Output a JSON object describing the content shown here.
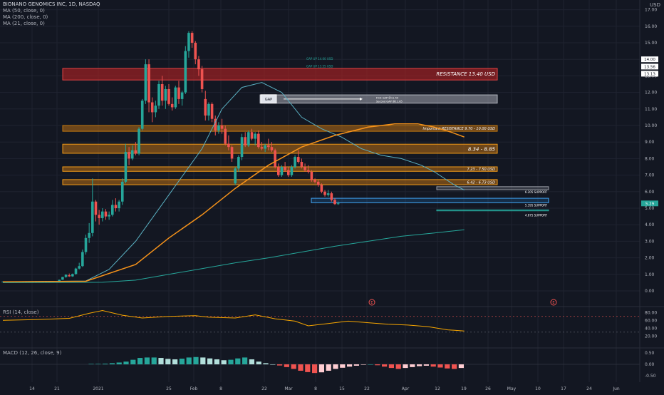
{
  "header": {
    "symbol_line": "BIONANO GENOMICS INC, 1D, NASDAQ",
    "indicators": [
      "MA (50, close, 0)",
      "MA (200, close, 0)",
      "MA (21, close, 0)"
    ],
    "currency": "USD"
  },
  "colors": {
    "background": "#131722",
    "grid": "#1f2330",
    "up": "#26a69a",
    "down": "#ef5350",
    "ma50": "#f7931a",
    "ma200": "#26a69a",
    "ma21": "#5ab0c2",
    "text": "#b2b5be",
    "resistance_red": "#b22222",
    "zone_orange": "#e68a00",
    "gap_grey": "#9598a1",
    "rsi": "#f7a600",
    "macd_hist_up": "#26a69a",
    "macd_hist_up_light": "#b2dfdb",
    "macd_hist_down": "#ef5350",
    "macd_hist_down_light": "#ffcdd2"
  },
  "price_axis": {
    "ticks": [
      "17.00",
      "16.00",
      "15.00",
      "14.00",
      "13.00",
      "12.00",
      "11.00",
      "10.00",
      "9.00",
      "8.00",
      "7.00",
      "6.00",
      "5.00",
      "4.00",
      "3.00",
      "2.00",
      "1.00",
      "0.00"
    ],
    "tags": [
      {
        "label": "14.00",
        "value": 14.0,
        "color": "#ffffff",
        "text_color": "#131722"
      },
      {
        "label": "13.56",
        "value": 13.56,
        "color": "#ffffff",
        "text_color": "#131722"
      },
      {
        "label": "13.13",
        "value": 13.13,
        "color": "#ffffff",
        "text_color": "#131722"
      },
      {
        "label": "5.29",
        "value": 5.29,
        "color": "#26a69a",
        "text_color": "#ffffff"
      }
    ]
  },
  "time_axis": {
    "labels": [
      "14",
      "21",
      "2021",
      "25",
      "Feb",
      "8",
      "22",
      "Mar",
      "8",
      "15",
      "22",
      "Apr",
      "12",
      "19",
      "26",
      "May",
      "10",
      "17",
      "24",
      "Jun"
    ]
  },
  "annotations": {
    "resistance_main": "RESISTANCE 13.40 USD",
    "important_resistance": "Important RESISTANCE 9.70 - 10.00 USD",
    "zone_834": "8.34 - 8.85",
    "zone_723": "7.23 - 7.50 USD",
    "zone_642": "6.42 - 6.73 USD",
    "support_620": "6.205 SUPPORT",
    "support_539": "5.395 SUPPORT",
    "support_487": "4.875 SUPPORT",
    "gap_label": "GAP",
    "gap_first": "First GAP @11.50",
    "gap_second": "Second GAP @11.65",
    "gap_up_1": "GAP UP 14.00 USD",
    "gap_up_2": "GAP UP 13.55 USD",
    "event_markers": [
      "E",
      "E"
    ]
  },
  "rsi": {
    "label": "RSI (14, close)",
    "ticks": [
      "80.00",
      "60.00",
      "40.00",
      "20.00"
    ]
  },
  "macd": {
    "label": "MACD (12, 26, close, 9)",
    "ticks": [
      "0.50",
      "0.00",
      "-0.50"
    ]
  },
  "chart_data": {
    "type": "candlestick",
    "title": "BIONANO GENOMICS INC, 1D, NASDAQ",
    "ylabel": "USD",
    "ylim": [
      -0.2,
      17.2
    ],
    "candles": [
      [
        0.56,
        0.57,
        0.55,
        0.56
      ],
      [
        0.56,
        0.57,
        0.55,
        0.56
      ],
      [
        0.56,
        0.57,
        0.55,
        0.56
      ],
      [
        0.56,
        0.57,
        0.55,
        0.56
      ],
      [
        0.56,
        0.57,
        0.55,
        0.56
      ],
      [
        0.56,
        0.57,
        0.55,
        0.56
      ],
      [
        0.56,
        0.57,
        0.55,
        0.56
      ],
      [
        0.56,
        0.57,
        0.55,
        0.56
      ],
      [
        0.56,
        0.57,
        0.55,
        0.56
      ],
      [
        0.56,
        0.57,
        0.55,
        0.56
      ],
      [
        0.56,
        0.57,
        0.55,
        0.56
      ],
      [
        0.56,
        0.57,
        0.55,
        0.56
      ],
      [
        0.56,
        0.57,
        0.55,
        0.56
      ],
      [
        0.56,
        0.57,
        0.55,
        0.56
      ],
      [
        0.56,
        0.57,
        0.55,
        0.56
      ],
      [
        0.56,
        0.58,
        0.55,
        0.57
      ],
      [
        0.57,
        0.6,
        0.56,
        0.59
      ],
      [
        0.6,
        0.68,
        0.59,
        0.67
      ],
      [
        0.68,
        0.85,
        0.66,
        0.84
      ],
      [
        0.84,
        1.0,
        0.8,
        0.98
      ],
      [
        0.95,
        1.05,
        0.85,
        0.88
      ],
      [
        0.88,
        1.05,
        0.85,
        1.02
      ],
      [
        1.02,
        1.4,
        0.98,
        1.35
      ],
      [
        1.35,
        1.7,
        1.3,
        1.5
      ],
      [
        1.5,
        2.5,
        1.45,
        2.35
      ],
      [
        2.35,
        3.4,
        2.2,
        3.2
      ],
      [
        3.2,
        4.1,
        2.9,
        3.5
      ],
      [
        3.5,
        6.8,
        3.3,
        5.4
      ],
      [
        5.4,
        5.5,
        4.2,
        4.6
      ],
      [
        4.6,
        4.9,
        4.0,
        4.4
      ],
      [
        4.4,
        5.0,
        4.2,
        4.8
      ],
      [
        4.8,
        4.95,
        4.3,
        4.5
      ],
      [
        4.5,
        4.8,
        4.3,
        4.6
      ],
      [
        4.6,
        5.5,
        4.5,
        5.2
      ],
      [
        5.2,
        5.6,
        4.8,
        5.0
      ],
      [
        5.0,
        5.5,
        4.8,
        5.4
      ],
      [
        5.4,
        6.8,
        5.2,
        6.6
      ],
      [
        6.6,
        8.9,
        6.5,
        8.4
      ],
      [
        8.4,
        8.7,
        7.6,
        8.0
      ],
      [
        8.0,
        8.8,
        7.9,
        8.5
      ],
      [
        8.5,
        9.0,
        8.2,
        8.3
      ],
      [
        8.3,
        9.9,
        8.2,
        9.8
      ],
      [
        9.8,
        11.6,
        9.7,
        11.5
      ],
      [
        11.5,
        14.0,
        11.3,
        13.7
      ],
      [
        13.7,
        14.0,
        10.8,
        11.4
      ],
      [
        11.4,
        11.7,
        10.2,
        10.8
      ],
      [
        10.8,
        11.5,
        10.5,
        11.2
      ],
      [
        11.2,
        12.7,
        11.0,
        12.5
      ],
      [
        12.5,
        13.0,
        11.2,
        11.5
      ],
      [
        11.5,
        12.4,
        11.0,
        12.2
      ],
      [
        12.2,
        12.5,
        11.2,
        11.3
      ],
      [
        11.3,
        11.7,
        10.9,
        11.1
      ],
      [
        11.1,
        12.4,
        11.0,
        12.3
      ],
      [
        12.3,
        12.7,
        11.3,
        11.6
      ],
      [
        11.6,
        12.1,
        11.2,
        12.0
      ],
      [
        12.0,
        14.8,
        11.9,
        14.5
      ],
      [
        14.5,
        15.7,
        14.1,
        15.6
      ],
      [
        15.6,
        15.7,
        14.7,
        15.0
      ],
      [
        15.0,
        15.1,
        13.7,
        14.0
      ],
      [
        14.0,
        14.2,
        13.0,
        13.4
      ],
      [
        13.4,
        13.6,
        12.0,
        12.2
      ],
      [
        11.6,
        12.1,
        10.3,
        10.6
      ],
      [
        10.6,
        11.4,
        10.3,
        11.3
      ],
      [
        11.3,
        11.4,
        10.2,
        10.4
      ],
      [
        10.4,
        10.6,
        9.4,
        9.7
      ],
      [
        9.7,
        10.2,
        9.5,
        10.0
      ],
      [
        10.0,
        10.4,
        9.5,
        9.8
      ],
      [
        9.8,
        10.0,
        8.8,
        8.9
      ],
      [
        8.9,
        9.4,
        8.5,
        8.7
      ],
      [
        8.7,
        8.8,
        7.8,
        8.0
      ],
      [
        6.5,
        7.5,
        6.4,
        7.4
      ],
      [
        7.4,
        8.2,
        7.2,
        8.1
      ],
      [
        8.1,
        9.5,
        7.9,
        9.3
      ],
      [
        9.3,
        9.6,
        8.7,
        8.8
      ],
      [
        8.8,
        9.7,
        8.7,
        9.6
      ],
      [
        9.6,
        9.8,
        9.1,
        9.2
      ],
      [
        9.2,
        9.6,
        8.8,
        9.5
      ],
      [
        9.5,
        9.7,
        8.6,
        8.7
      ],
      [
        8.7,
        9.0,
        8.5,
        8.6
      ],
      [
        8.6,
        8.9,
        8.4,
        8.8
      ],
      [
        8.8,
        9.2,
        8.5,
        8.7
      ],
      [
        8.7,
        9.0,
        8.4,
        8.5
      ],
      [
        8.5,
        8.6,
        7.4,
        7.5
      ],
      [
        7.5,
        7.7,
        6.9,
        7.0
      ],
      [
        7.0,
        7.6,
        6.9,
        7.5
      ],
      [
        7.5,
        7.8,
        7.2,
        7.3
      ],
      [
        7.3,
        7.5,
        6.9,
        7.0
      ],
      [
        7.0,
        7.6,
        6.9,
        7.5
      ],
      [
        7.5,
        8.2,
        7.4,
        8.1
      ],
      [
        8.1,
        8.5,
        7.7,
        7.8
      ],
      [
        7.8,
        8.0,
        7.4,
        7.5
      ],
      [
        7.5,
        7.7,
        7.2,
        7.3
      ],
      [
        7.3,
        7.6,
        7.1,
        7.2
      ],
      [
        7.2,
        7.3,
        6.6,
        6.7
      ],
      [
        6.7,
        6.8,
        6.5,
        6.6
      ],
      [
        6.6,
        6.7,
        6.3,
        6.4
      ],
      [
        6.4,
        6.5,
        5.9,
        6.0
      ],
      [
        6.0,
        6.1,
        5.7,
        5.8
      ],
      [
        5.8,
        6.1,
        5.7,
        5.9
      ],
      [
        5.9,
        6.0,
        5.4,
        5.5
      ],
      [
        5.5,
        5.6,
        5.2,
        5.25
      ],
      [
        5.25,
        5.4,
        5.2,
        5.29
      ]
    ],
    "ma50": [
      [
        0,
        0.55
      ],
      [
        25,
        0.58
      ],
      [
        40,
        1.6
      ],
      [
        50,
        3.2
      ],
      [
        60,
        4.6
      ],
      [
        70,
        6.2
      ],
      [
        80,
        7.6
      ],
      [
        90,
        8.7
      ],
      [
        100,
        9.4
      ],
      [
        110,
        9.9
      ],
      [
        118,
        10.1
      ],
      [
        125,
        10.1
      ],
      [
        130,
        9.9
      ],
      [
        135,
        9.6
      ],
      [
        139,
        9.3
      ]
    ],
    "ma200": [
      [
        0,
        0.5
      ],
      [
        30,
        0.52
      ],
      [
        40,
        0.65
      ],
      [
        50,
        1.0
      ],
      [
        60,
        1.35
      ],
      [
        70,
        1.7
      ],
      [
        80,
        2.0
      ],
      [
        90,
        2.35
      ],
      [
        100,
        2.7
      ],
      [
        110,
        3.0
      ],
      [
        120,
        3.3
      ],
      [
        130,
        3.5
      ],
      [
        139,
        3.7
      ]
    ],
    "ma21": [
      [
        0,
        0.55
      ],
      [
        25,
        0.6
      ],
      [
        32,
        1.3
      ],
      [
        40,
        3.0
      ],
      [
        50,
        5.8
      ],
      [
        60,
        8.6
      ],
      [
        66,
        11.0
      ],
      [
        72,
        12.3
      ],
      [
        78,
        12.6
      ],
      [
        84,
        12.0
      ],
      [
        90,
        10.5
      ],
      [
        96,
        9.8
      ],
      [
        102,
        9.3
      ],
      [
        108,
        8.6
      ],
      [
        114,
        8.2
      ],
      [
        120,
        8.0
      ],
      [
        126,
        7.6
      ],
      [
        130,
        7.2
      ],
      [
        136,
        6.4
      ],
      [
        139,
        6.1
      ]
    ],
    "rsi_values": [
      [
        0,
        60
      ],
      [
        10,
        62
      ],
      [
        20,
        65
      ],
      [
        26,
        78
      ],
      [
        30,
        85
      ],
      [
        36,
        73
      ],
      [
        42,
        66
      ],
      [
        50,
        70
      ],
      [
        58,
        72
      ],
      [
        62,
        68
      ],
      [
        70,
        66
      ],
      [
        76,
        74
      ],
      [
        82,
        64
      ],
      [
        88,
        58
      ],
      [
        92,
        46
      ],
      [
        98,
        52
      ],
      [
        104,
        58
      ],
      [
        110,
        54
      ],
      [
        116,
        50
      ],
      [
        122,
        48
      ],
      [
        128,
        44
      ],
      [
        134,
        36
      ],
      [
        139,
        33
      ]
    ],
    "macd_hist": [
      0.02,
      0.02,
      0.03,
      0.05,
      0.08,
      0.12,
      0.2,
      0.28,
      0.3,
      0.3,
      0.28,
      0.24,
      0.22,
      0.25,
      0.3,
      0.32,
      0.3,
      0.26,
      0.22,
      0.18,
      0.2,
      0.26,
      0.3,
      0.22,
      0.12,
      0.05,
      0.0,
      -0.05,
      -0.12,
      -0.2,
      -0.28,
      -0.34,
      -0.38,
      -0.35,
      -0.28,
      -0.2,
      -0.15,
      -0.1,
      -0.06,
      -0.02,
      0.0,
      -0.04,
      -0.1,
      -0.16,
      -0.2,
      -0.16,
      -0.12,
      -0.08,
      -0.06,
      -0.1,
      -0.14,
      -0.18,
      -0.2,
      -0.16
    ]
  }
}
